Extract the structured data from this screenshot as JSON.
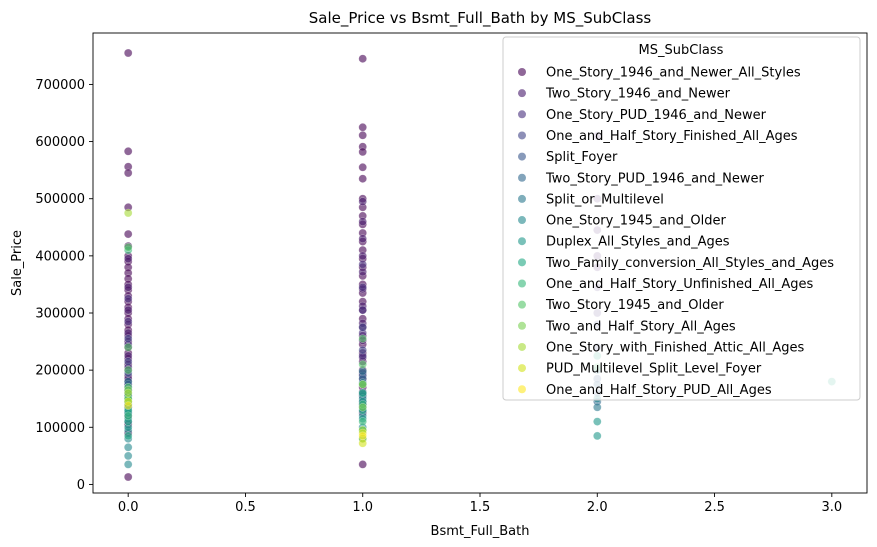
{
  "chart_data": {
    "type": "scatter",
    "title": "Sale_Price vs Bsmt_Full_Bath by MS_SubClass",
    "xlabel": "Bsmt_Full_Bath",
    "ylabel": "Sale_Price",
    "xlim": [
      -0.15,
      3.15
    ],
    "ylim": [
      -15000,
      790000
    ],
    "x_ticks": [
      0.0,
      0.5,
      1.0,
      1.5,
      2.0,
      2.5,
      3.0
    ],
    "x_tick_labels": [
      "0.0",
      "0.5",
      "1.0",
      "1.5",
      "2.0",
      "2.5",
      "3.0"
    ],
    "y_ticks": [
      0,
      100000,
      200000,
      300000,
      400000,
      500000,
      600000,
      700000
    ],
    "y_tick_labels": [
      "0",
      "100000",
      "200000",
      "300000",
      "400000",
      "500000",
      "600000",
      "700000"
    ],
    "grid": false,
    "legend": {
      "title": "MS_SubClass",
      "position": "top-right"
    },
    "series": [
      {
        "name": "One_Story_1946_and_Newer_All_Styles",
        "color": "#440154",
        "points": [
          [
            0,
            755000
          ],
          [
            0,
            583000
          ],
          [
            0,
            556000
          ],
          [
            0,
            545000
          ],
          [
            0,
            485000
          ],
          [
            0,
            438000
          ],
          [
            0,
            417000
          ],
          [
            0,
            400000
          ],
          [
            0,
            390000
          ],
          [
            0,
            380000
          ],
          [
            0,
            370000
          ],
          [
            0,
            360000
          ],
          [
            0,
            350000
          ],
          [
            0,
            340000
          ],
          [
            0,
            330000
          ],
          [
            0,
            320000
          ],
          [
            0,
            310000
          ],
          [
            0,
            300000
          ],
          [
            0,
            290000
          ],
          [
            0,
            280000
          ],
          [
            0,
            270000
          ],
          [
            0,
            260000
          ],
          [
            0,
            250000
          ],
          [
            0,
            240000
          ],
          [
            0,
            230000
          ],
          [
            0,
            220000
          ],
          [
            0,
            210000
          ],
          [
            0,
            200000
          ],
          [
            0,
            190000
          ],
          [
            0,
            180000
          ],
          [
            0,
            165000
          ],
          [
            0,
            150000
          ],
          [
            0,
            135000
          ],
          [
            0,
            120000
          ],
          [
            0,
            105000
          ],
          [
            0,
            90000
          ],
          [
            0,
            13000
          ],
          [
            1,
            745000
          ],
          [
            1,
            625000
          ],
          [
            1,
            611000
          ],
          [
            1,
            591000
          ],
          [
            1,
            582000
          ],
          [
            1,
            555000
          ],
          [
            1,
            535000
          ],
          [
            1,
            500000
          ],
          [
            1,
            485000
          ],
          [
            1,
            470000
          ],
          [
            1,
            455000
          ],
          [
            1,
            440000
          ],
          [
            1,
            425000
          ],
          [
            1,
            410000
          ],
          [
            1,
            395000
          ],
          [
            1,
            380000
          ],
          [
            1,
            365000
          ],
          [
            1,
            350000
          ],
          [
            1,
            335000
          ],
          [
            1,
            320000
          ],
          [
            1,
            305000
          ],
          [
            1,
            290000
          ],
          [
            1,
            275000
          ],
          [
            1,
            260000
          ],
          [
            1,
            245000
          ],
          [
            1,
            230000
          ],
          [
            1,
            215000
          ],
          [
            1,
            200000
          ],
          [
            1,
            185000
          ],
          [
            1,
            170000
          ],
          [
            1,
            155000
          ],
          [
            1,
            140000
          ],
          [
            1,
            125000
          ],
          [
            1,
            35000
          ]
        ]
      },
      {
        "name": "Two_Story_1946_and_Newer",
        "color": "#481a6c",
        "points": [
          [
            0,
            395000
          ],
          [
            0,
            345000
          ],
          [
            0,
            305000
          ],
          [
            0,
            265000
          ],
          [
            0,
            225000
          ],
          [
            0,
            185000
          ],
          [
            0,
            155000
          ],
          [
            1,
            495000
          ],
          [
            1,
            460000
          ],
          [
            1,
            430000
          ],
          [
            1,
            400000
          ],
          [
            1,
            372000
          ],
          [
            1,
            342000
          ],
          [
            1,
            312000
          ],
          [
            1,
            282000
          ],
          [
            1,
            252000
          ],
          [
            1,
            222000
          ],
          [
            1,
            192000
          ],
          [
            1,
            162000
          ],
          [
            2,
            610000
          ],
          [
            2,
            500000
          ],
          [
            2,
            445000
          ],
          [
            2,
            400000
          ],
          [
            2,
            380000
          ]
        ]
      },
      {
        "name": "One_Story_PUD_1946_and_Newer",
        "color": "#472f7d",
        "points": [
          [
            0,
            325000
          ],
          [
            0,
            285000
          ],
          [
            0,
            245000
          ],
          [
            0,
            205000
          ],
          [
            0,
            175000
          ],
          [
            1,
            385000
          ],
          [
            1,
            345000
          ],
          [
            1,
            305000
          ],
          [
            1,
            265000
          ],
          [
            1,
            225000
          ],
          [
            1,
            195000
          ],
          [
            2,
            345000
          ],
          [
            2,
            300000
          ]
        ]
      },
      {
        "name": "One_and_Half_Story_Finished_All_Ages",
        "color": "#414487",
        "points": [
          [
            0,
            255000
          ],
          [
            0,
            215000
          ],
          [
            0,
            175000
          ],
          [
            0,
            145000
          ],
          [
            0,
            125000
          ],
          [
            0,
            110000
          ],
          [
            1,
            275000
          ],
          [
            1,
            235000
          ],
          [
            1,
            175000
          ],
          [
            1,
            145000
          ],
          [
            2,
            280000
          ],
          [
            2,
            240000
          ]
        ]
      },
      {
        "name": "Split_Foyer",
        "color": "#39568c",
        "points": [
          [
            0,
            195000
          ],
          [
            0,
            165000
          ],
          [
            0,
            140000
          ],
          [
            1,
            190000
          ],
          [
            1,
            160000
          ],
          [
            1,
            135000
          ],
          [
            2,
            185000
          ],
          [
            2,
            160000
          ]
        ]
      },
      {
        "name": "Two_Story_PUD_1946_and_Newer",
        "color": "#31688e",
        "points": [
          [
            0,
            170000
          ],
          [
            0,
            145000
          ],
          [
            0,
            128000
          ],
          [
            1,
            185000
          ],
          [
            1,
            155000
          ],
          [
            1,
            128000
          ],
          [
            2,
            175000
          ],
          [
            2,
            145000
          ]
        ]
      },
      {
        "name": "Split_or_Multilevel",
        "color": "#2a788e",
        "points": [
          [
            0,
            180000
          ],
          [
            0,
            160000
          ],
          [
            0,
            148000
          ],
          [
            1,
            198000
          ],
          [
            1,
            178000
          ],
          [
            1,
            158000
          ],
          [
            2,
            200000
          ],
          [
            2,
            135000
          ]
        ]
      },
      {
        "name": "One_Story_1945_and_Older",
        "color": "#23888e",
        "points": [
          [
            0,
            135000
          ],
          [
            0,
            115000
          ],
          [
            0,
            95000
          ],
          [
            0,
            80000
          ],
          [
            0,
            65000
          ],
          [
            0,
            50000
          ],
          [
            0,
            35000
          ],
          [
            1,
            150000
          ],
          [
            1,
            120000
          ],
          [
            1,
            100000
          ],
          [
            1,
            80000
          ],
          [
            2,
            150000
          ]
        ]
      },
      {
        "name": "Duplex_All_Styles_and_Ages",
        "color": "#1f988b",
        "points": [
          [
            0,
            155000
          ],
          [
            0,
            140000
          ],
          [
            0,
            125000
          ],
          [
            0,
            100000
          ],
          [
            1,
            145000
          ],
          [
            1,
            115000
          ],
          [
            2,
            110000
          ],
          [
            2,
            85000
          ]
        ]
      },
      {
        "name": "Two_Family_conversion_All_Styles_and_Ages",
        "color": "#22a884",
        "points": [
          [
            0,
            150000
          ],
          [
            0,
            130000
          ],
          [
            0,
            110000
          ],
          [
            0,
            85000
          ],
          [
            1,
            160000
          ],
          [
            1,
            130000
          ],
          [
            1,
            95000
          ],
          [
            2,
            225000
          ],
          [
            3,
            180000
          ]
        ]
      },
      {
        "name": "One_and_Half_Story_Unfinished_All_Ages",
        "color": "#35b779",
        "points": [
          [
            0,
            410000
          ],
          [
            0,
            145000
          ],
          [
            0,
            120000
          ],
          [
            1,
            140000
          ],
          [
            1,
            110000
          ]
        ]
      },
      {
        "name": "Two_Story_1945_and_Older",
        "color": "#54c568",
        "points": [
          [
            0,
            415000
          ],
          [
            0,
            240000
          ],
          [
            0,
            200000
          ],
          [
            0,
            170000
          ],
          [
            1,
            255000
          ],
          [
            1,
            210000
          ],
          [
            1,
            175000
          ],
          [
            2,
            205000
          ]
        ]
      },
      {
        "name": "Two_and_Half_Story_All_Ages",
        "color": "#7ad151",
        "points": [
          [
            0,
            165000
          ],
          [
            0,
            150000
          ],
          [
            1,
            175000
          ],
          [
            1,
            135000
          ]
        ]
      },
      {
        "name": "One_Story_with_Finished_Attic_All_Ages",
        "color": "#a5db36",
        "points": [
          [
            0,
            475000
          ],
          [
            0,
            160000
          ],
          [
            1,
            95000
          ],
          [
            1,
            80000
          ]
        ]
      },
      {
        "name": "PUD_Multilevel_Split_Level_Foyer",
        "color": "#d2e21b",
        "points": [
          [
            0,
            145000
          ],
          [
            1,
            90000
          ],
          [
            1,
            72000
          ]
        ]
      },
      {
        "name": "One_and_Half_Story_PUD_All_Ages",
        "color": "#fde725",
        "points": [
          [
            0,
            138000
          ],
          [
            1,
            85000
          ]
        ]
      }
    ]
  }
}
